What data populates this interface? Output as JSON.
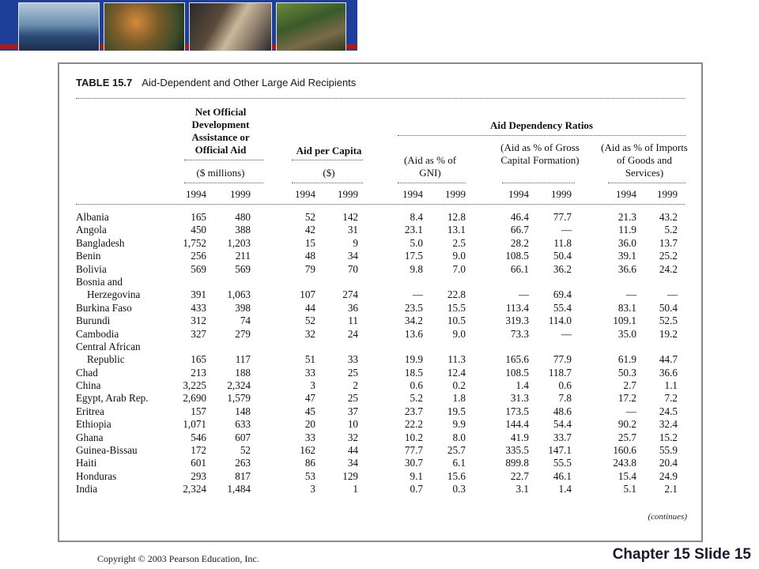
{
  "table": {
    "number": "TABLE 15.7",
    "title": "Aid-Dependent and Other Large Aid Recipients",
    "headers": {
      "oda": "Net Official Development Assistance or Official Aid",
      "oda_unit": "($ millions)",
      "per_capita": "Aid per Capita",
      "per_capita_unit": "($)",
      "ratios": "Aid Dependency Ratios",
      "gni": "(Aid as % of GNI)",
      "gcf": "(Aid as % of Gross Capital Formation)",
      "imports": "(Aid as % of Imports of Goods and Services)"
    },
    "years": [
      "1994",
      "1999",
      "1994",
      "1999",
      "1994",
      "1999",
      "1994",
      "1999",
      "1994",
      "1999"
    ],
    "rows": [
      {
        "name": "Albania",
        "vals": [
          "165",
          "480",
          "52",
          "142",
          "8.4",
          "12.8",
          "46.4",
          "77.7",
          "21.3",
          "43.2"
        ]
      },
      {
        "name": "Angola",
        "vals": [
          "450",
          "388",
          "42",
          "31",
          "23.1",
          "13.1",
          "66.7",
          "—",
          "11.9",
          "5.2"
        ]
      },
      {
        "name": "Bangladesh",
        "vals": [
          "1,752",
          "1,203",
          "15",
          "9",
          "5.0",
          "2.5",
          "28.2",
          "11.8",
          "36.0",
          "13.7"
        ]
      },
      {
        "name": "Benin",
        "vals": [
          "256",
          "211",
          "48",
          "34",
          "17.5",
          "9.0",
          "108.5",
          "50.4",
          "39.1",
          "25.2"
        ]
      },
      {
        "name": "Bolivia",
        "vals": [
          "569",
          "569",
          "79",
          "70",
          "9.8",
          "7.0",
          "66.1",
          "36.2",
          "36.6",
          "24.2"
        ]
      },
      {
        "name": "Bosnia and",
        "vals": [
          "",
          "",
          "",
          "",
          "",
          "",
          "",
          "",
          "",
          ""
        ]
      },
      {
        "name": "Herzegovina",
        "indent": true,
        "vals": [
          "391",
          "1,063",
          "107",
          "274",
          "—",
          "22.8",
          "—",
          "69.4",
          "—",
          "—"
        ]
      },
      {
        "name": "Burkina Faso",
        "vals": [
          "433",
          "398",
          "44",
          "36",
          "23.5",
          "15.5",
          "113.4",
          "55.4",
          "83.1",
          "50.4"
        ]
      },
      {
        "name": "Burundi",
        "vals": [
          "312",
          "74",
          "52",
          "11",
          "34.2",
          "10.5",
          "319.3",
          "114.0",
          "109.1",
          "52.5"
        ]
      },
      {
        "name": "Cambodia",
        "vals": [
          "327",
          "279",
          "32",
          "24",
          "13.6",
          "9.0",
          "73.3",
          "—",
          "35.0",
          "19.2"
        ]
      },
      {
        "name": "Central African",
        "vals": [
          "",
          "",
          "",
          "",
          "",
          "",
          "",
          "",
          "",
          ""
        ]
      },
      {
        "name": "Republic",
        "indent": true,
        "vals": [
          "165",
          "117",
          "51",
          "33",
          "19.9",
          "11.3",
          "165.6",
          "77.9",
          "61.9",
          "44.7"
        ]
      },
      {
        "name": "Chad",
        "vals": [
          "213",
          "188",
          "33",
          "25",
          "18.5",
          "12.4",
          "108.5",
          "118.7",
          "50.3",
          "36.6"
        ]
      },
      {
        "name": "China",
        "vals": [
          "3,225",
          "2,324",
          "3",
          "2",
          "0.6",
          "0.2",
          "1.4",
          "0.6",
          "2.7",
          "1.1"
        ]
      },
      {
        "name": "Egypt, Arab Rep.",
        "vals": [
          "2,690",
          "1,579",
          "47",
          "25",
          "5.2",
          "1.8",
          "31.3",
          "7.8",
          "17.2",
          "7.2"
        ]
      },
      {
        "name": "Eritrea",
        "vals": [
          "157",
          "148",
          "45",
          "37",
          "23.7",
          "19.5",
          "173.5",
          "48.6",
          "—",
          "24.5"
        ]
      },
      {
        "name": "Ethiopia",
        "vals": [
          "1,071",
          "633",
          "20",
          "10",
          "22.2",
          "9.9",
          "144.4",
          "54.4",
          "90.2",
          "32.4"
        ]
      },
      {
        "name": "Ghana",
        "vals": [
          "546",
          "607",
          "33",
          "32",
          "10.2",
          "8.0",
          "41.9",
          "33.7",
          "25.7",
          "15.2"
        ]
      },
      {
        "name": "Guinea-Bissau",
        "vals": [
          "172",
          "52",
          "162",
          "44",
          "77.7",
          "25.7",
          "335.5",
          "147.1",
          "160.6",
          "55.9"
        ]
      },
      {
        "name": "Haiti",
        "vals": [
          "601",
          "263",
          "86",
          "34",
          "30.7",
          "6.1",
          "899.8",
          "55.5",
          "243.8",
          "20.4"
        ]
      },
      {
        "name": "Honduras",
        "vals": [
          "293",
          "817",
          "53",
          "129",
          "9.1",
          "15.6",
          "22.7",
          "46.1",
          "15.4",
          "24.9"
        ]
      },
      {
        "name": "India",
        "vals": [
          "2,324",
          "1,484",
          "3",
          "1",
          "0.7",
          "0.3",
          "3.1",
          "1.4",
          "5.1",
          "2.1"
        ]
      }
    ],
    "continues": "(continues)"
  },
  "footer": {
    "copyright": "Copyright © 2003 Pearson Education, Inc.",
    "slide": "Chapter 15 Slide 15"
  }
}
